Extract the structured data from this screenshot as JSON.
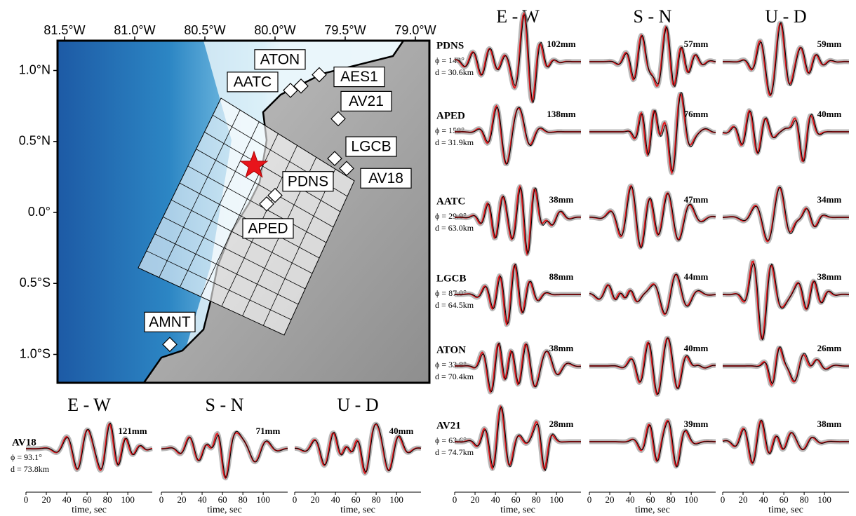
{
  "map": {
    "xlim": [
      -81.55,
      -78.9
    ],
    "ylim": [
      -1.2,
      1.21
    ],
    "lon_ticks": [
      {
        "value": -81.5,
        "label": "81.5°W"
      },
      {
        "value": -81.0,
        "label": "81.0°W"
      },
      {
        "value": -80.5,
        "label": "80.5°W"
      },
      {
        "value": -80.0,
        "label": "80.0°W"
      },
      {
        "value": -79.5,
        "label": "79.5°W"
      },
      {
        "value": -79.0,
        "label": "79.0°W"
      }
    ],
    "lat_ticks": [
      {
        "value": 1.0,
        "label": "1.0°N"
      },
      {
        "value": 0.5,
        "label": "0.5°N"
      },
      {
        "value": 0,
        "label": "0.0°"
      },
      {
        "value": -0.5,
        "label": "0.5°S"
      },
      {
        "value": -1.0,
        "label": "1.0°S"
      }
    ],
    "stations": [
      {
        "name": "ATON",
        "lon": -79.815,
        "lat": 0.89
      },
      {
        "name": "AATC",
        "lon": -79.89,
        "lat": 0.86
      },
      {
        "name": "AES1",
        "lon": -79.685,
        "lat": 0.97
      },
      {
        "name": "AV21",
        "lon": -79.55,
        "lat": 0.66
      },
      {
        "name": "LGCB",
        "lon": -79.575,
        "lat": 0.38
      },
      {
        "name": "AV18",
        "lon": -79.49,
        "lat": 0.31
      },
      {
        "name": "PDNS",
        "lon": -80.0,
        "lat": 0.12
      },
      {
        "name": "APED",
        "lon": -80.06,
        "lat": 0.06
      },
      {
        "name": "AMNT",
        "lon": -80.75,
        "lat": -0.93
      }
    ],
    "epicenter": {
      "lon": -80.15,
      "lat": 0.33
    }
  },
  "components": [
    "E - W",
    "S - N",
    "U - D"
  ],
  "time_axis": {
    "label": "time, sec",
    "xlim": [
      0,
      124
    ],
    "xticks": [
      0,
      20,
      40,
      60,
      80,
      100
    ]
  },
  "waveforms": [
    {
      "name": "PDNS",
      "azimuth": "ϕ = 143°",
      "distance": "d = 30.6km",
      "amplitudes": [
        "102mm",
        "57mm",
        "59mm"
      ]
    },
    {
      "name": "APED",
      "azimuth": "ϕ = 158°",
      "distance": "d = 31.9km",
      "amplitudes": [
        "138mm",
        "76mm",
        "40mm"
      ]
    },
    {
      "name": "AATC",
      "azimuth": "ϕ = 29.9°",
      "distance": "d = 63.0km",
      "amplitudes": [
        "38mm",
        "47mm",
        "34mm"
      ]
    },
    {
      "name": "LGCB",
      "azimuth": "ϕ = 87.0°",
      "distance": "d = 64.5km",
      "amplitudes": [
        "88mm",
        "44mm",
        "38mm"
      ]
    },
    {
      "name": "ATON",
      "azimuth": "ϕ = 33.8°",
      "distance": "d = 70.4km",
      "amplitudes": [
        "38mm",
        "40mm",
        "26mm"
      ]
    },
    {
      "name": "AV21",
      "azimuth": "ϕ = 63.6°",
      "distance": "d = 74.7km",
      "amplitudes": [
        "28mm",
        "39mm",
        "38mm"
      ]
    },
    {
      "name": "AV18",
      "azimuth": "ϕ = 93.1°",
      "distance": "d = 73.8km",
      "amplitudes": [
        "121mm",
        "71mm",
        "40mm"
      ]
    }
  ]
}
